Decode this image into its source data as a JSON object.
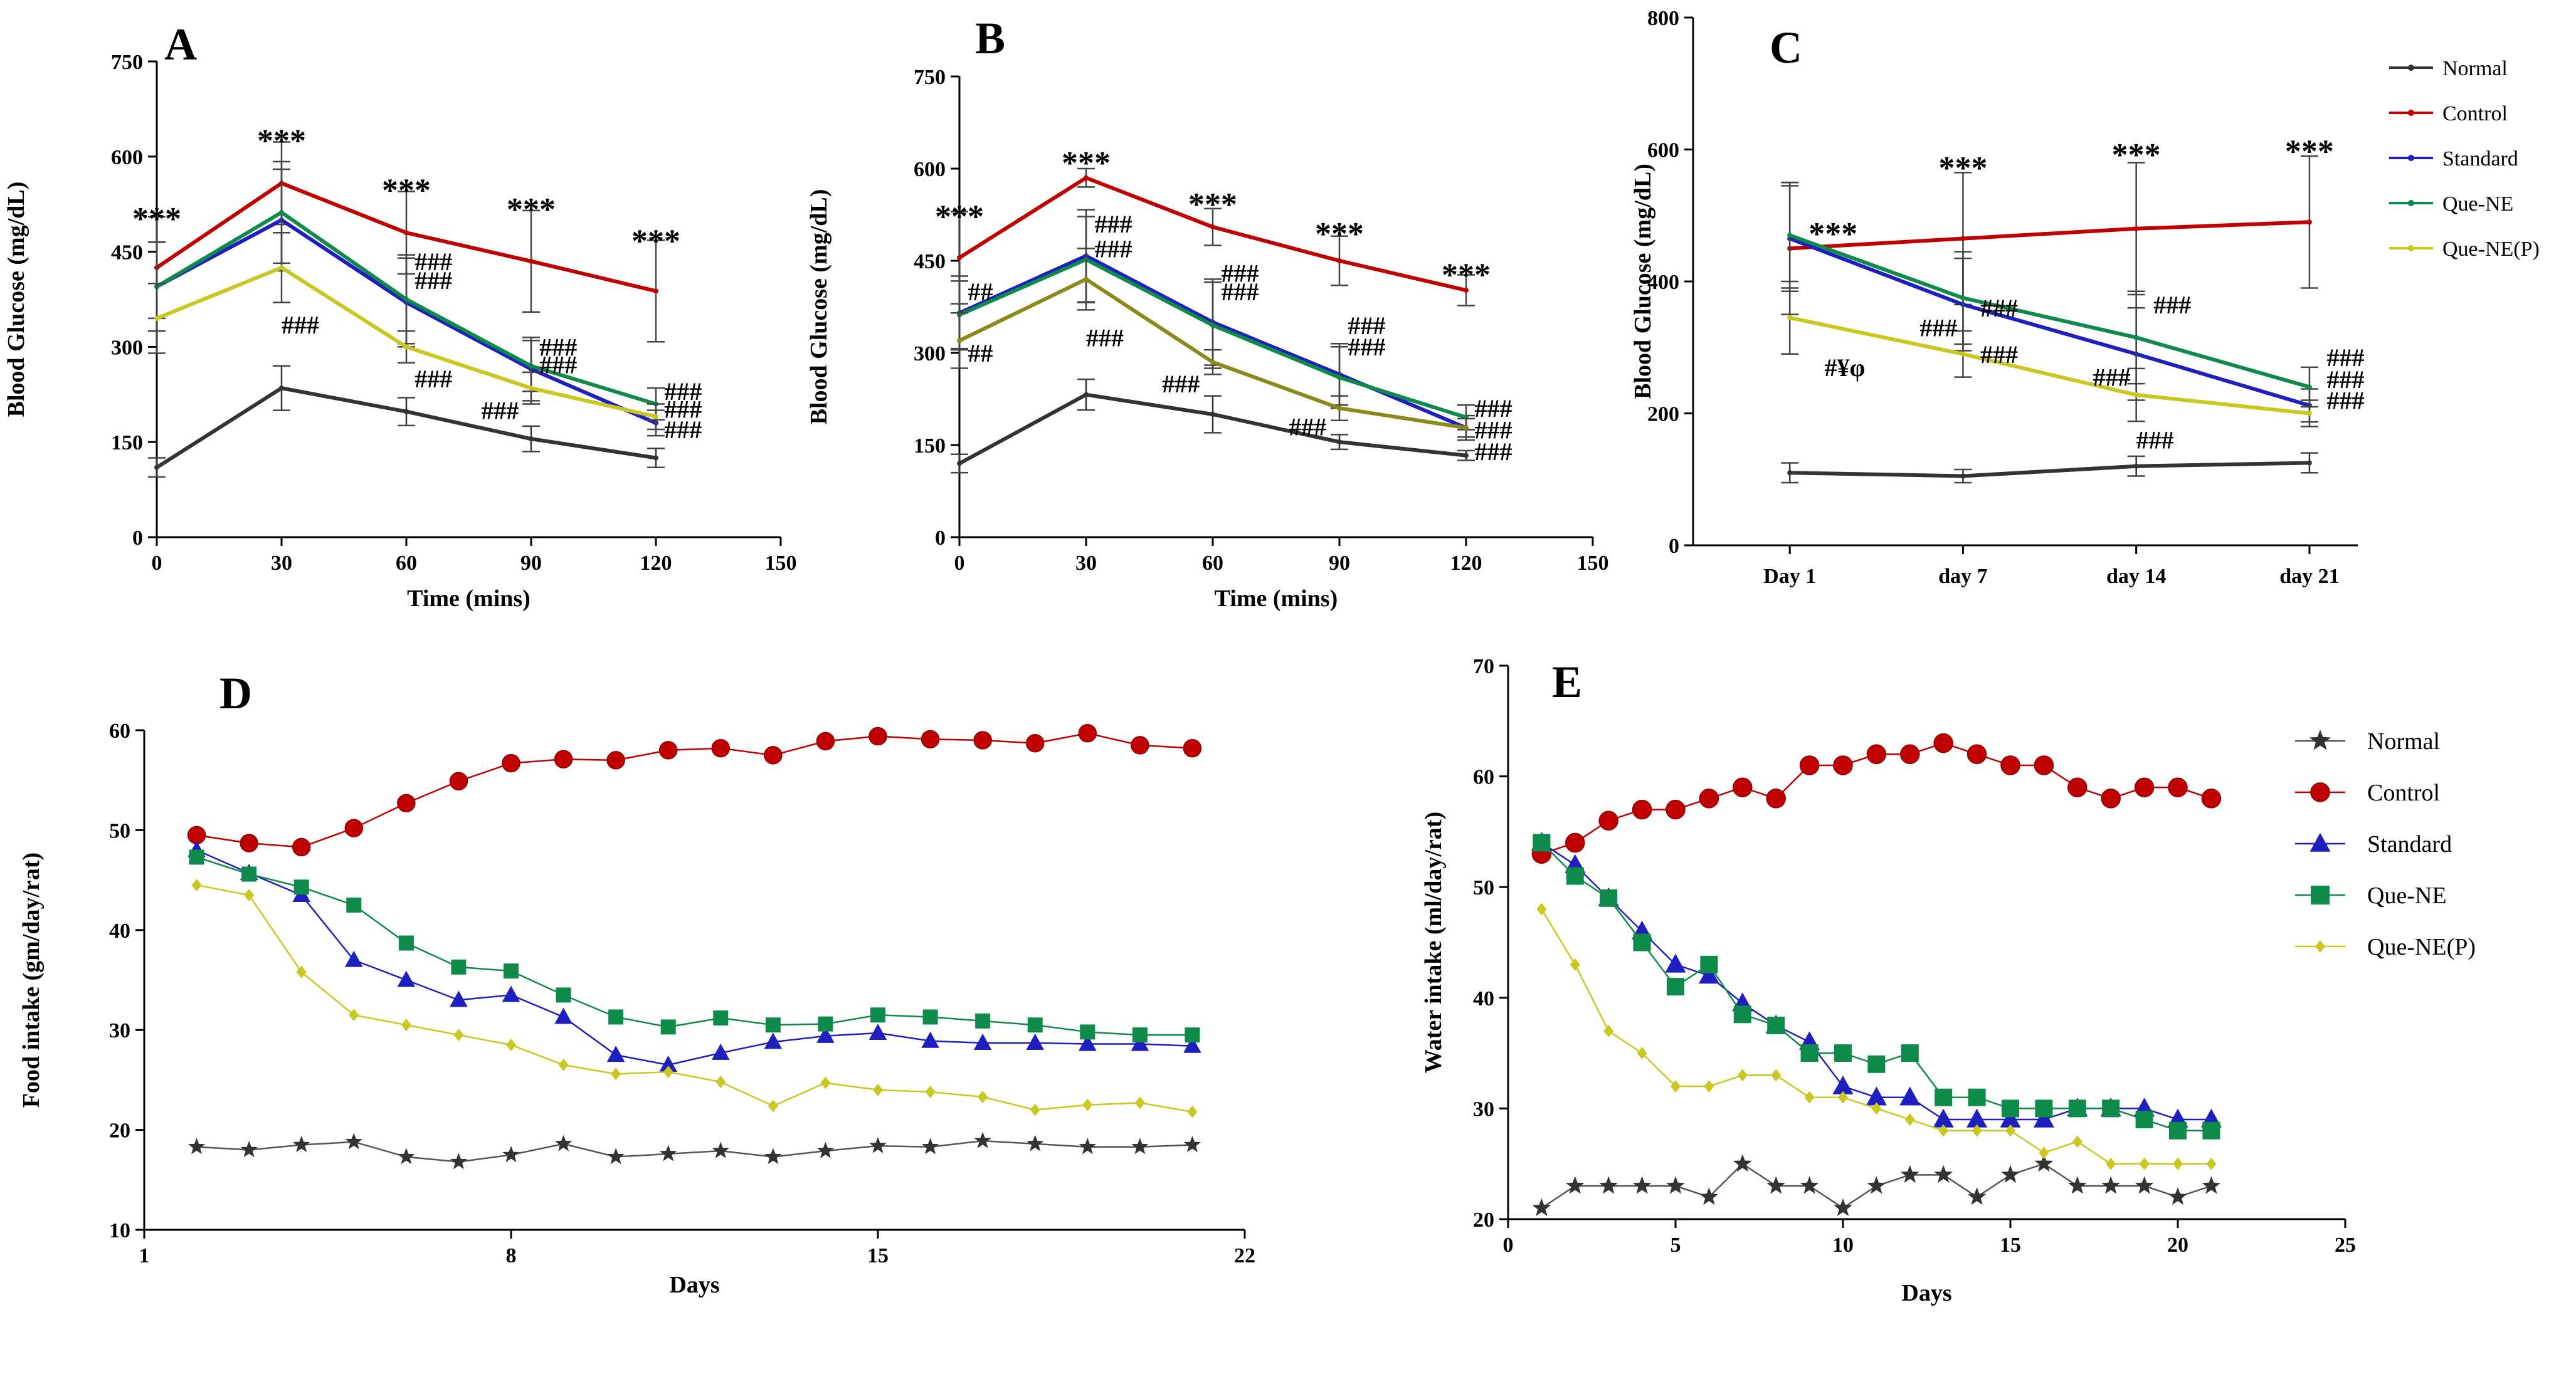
{
  "colors": {
    "Normal": "#333333",
    "Control": "#c00000",
    "Standard": "#1f1fbf",
    "Que-NE": "#0e8a4a",
    "Que-NE(P)": "#c8c820",
    "Que-NE(P)-B": "#8a8a1a",
    "axis": "#000000"
  },
  "chart_data": [
    {
      "id": "A",
      "type": "line",
      "title": "A",
      "xlabel": "Time (mins)",
      "ylabel": "Blood Glucose (mg/dL)",
      "xlim": [
        0,
        150
      ],
      "ylim": [
        0,
        750
      ],
      "xticks": [
        "0",
        "30",
        "60",
        "90",
        "120",
        "150"
      ],
      "yticks": [
        "0",
        "150",
        "300",
        "450",
        "600",
        "750"
      ],
      "x": [
        0,
        30,
        60,
        90,
        120
      ],
      "series": [
        {
          "name": "Normal",
          "values": [
            110,
            235,
            198,
            155,
            125
          ],
          "err": [
            15,
            35,
            22,
            20,
            15
          ]
        },
        {
          "name": "Control",
          "values": [
            425,
            558,
            480,
            435,
            388
          ],
          "err": [
            80,
            65,
            65,
            80,
            80
          ]
        },
        {
          "name": "Standard",
          "values": [
            395,
            500,
            370,
            265,
            180
          ],
          "err": [
            70,
            80,
            70,
            50,
            20
          ]
        },
        {
          "name": "Que-NE",
          "values": [
            395,
            512,
            375,
            270,
            210
          ],
          "err": [
            70,
            80,
            70,
            40,
            25
          ]
        },
        {
          "name": "Que-NE(P)",
          "values": [
            345,
            425,
            300,
            235,
            190
          ],
          "err": [
            55,
            55,
            25,
            25,
            20
          ]
        }
      ],
      "annotations": [
        {
          "text": "***",
          "x": 0,
          "y": 505
        },
        {
          "text": "***",
          "x": 30,
          "y": 628
        },
        {
          "text": "***",
          "x": 60,
          "y": 550
        },
        {
          "text": "***",
          "x": 90,
          "y": 520
        },
        {
          "text": "***",
          "x": 120,
          "y": 470
        },
        {
          "text": "###",
          "x": 30,
          "y": 335
        },
        {
          "text": "###",
          "x": 62,
          "y": 435
        },
        {
          "text": "###",
          "x": 62,
          "y": 405
        },
        {
          "text": "###",
          "x": 62,
          "y": 250
        },
        {
          "text": "###",
          "x": 92,
          "y": 300
        },
        {
          "text": "###",
          "x": 92,
          "y": 272
        },
        {
          "text": "###",
          "x": 78,
          "y": 200
        },
        {
          "text": "###",
          "x": 122,
          "y": 230
        },
        {
          "text": "###",
          "x": 122,
          "y": 202
        },
        {
          "text": "###",
          "x": 122,
          "y": 170
        }
      ]
    },
    {
      "id": "B",
      "type": "line",
      "title": "B",
      "xlabel": "Time (mins)",
      "ylabel": "Blood Glucose (mg/dL)",
      "xlim": [
        0,
        150
      ],
      "ylim": [
        0,
        750
      ],
      "xticks": [
        "0",
        "30",
        "60",
        "90",
        "120",
        "150"
      ],
      "yticks": [
        "0",
        "150",
        "300",
        "450",
        "600",
        "750"
      ],
      "x": [
        0,
        30,
        60,
        90,
        120
      ],
      "series": [
        {
          "name": "Normal",
          "values": [
            120,
            232,
            200,
            155,
            133
          ],
          "err": [
            15,
            25,
            30,
            12,
            8
          ]
        },
        {
          "name": "Control",
          "values": [
            455,
            585,
            505,
            450,
            402
          ],
          "err": [
            75,
            15,
            30,
            40,
            25
          ]
        },
        {
          "name": "Standard",
          "values": [
            365,
            458,
            350,
            265,
            178
          ],
          "err": [
            60,
            75,
            70,
            50,
            20
          ]
        },
        {
          "name": "Que-NE",
          "values": [
            362,
            452,
            345,
            260,
            195
          ],
          "err": [
            55,
            70,
            70,
            50,
            20
          ]
        },
        {
          "name": "Que-NE(P)-B",
          "values": [
            320,
            420,
            285,
            210,
            178
          ],
          "err": [
            45,
            50,
            20,
            20,
            15
          ]
        }
      ],
      "annotations": [
        {
          "text": "***",
          "x": 0,
          "y": 525
        },
        {
          "text": "***",
          "x": 30,
          "y": 612
        },
        {
          "text": "***",
          "x": 60,
          "y": 545
        },
        {
          "text": "***",
          "x": 90,
          "y": 497
        },
        {
          "text": "***",
          "x": 120,
          "y": 430
        },
        {
          "text": "##",
          "x": 2,
          "y": 400
        },
        {
          "text": "##",
          "x": 2,
          "y": 300
        },
        {
          "text": "###",
          "x": 32,
          "y": 510
        },
        {
          "text": "###",
          "x": 32,
          "y": 470
        },
        {
          "text": "###",
          "x": 30,
          "y": 325
        },
        {
          "text": "###",
          "x": 62,
          "y": 430
        },
        {
          "text": "###",
          "x": 62,
          "y": 400
        },
        {
          "text": "###",
          "x": 48,
          "y": 250
        },
        {
          "text": "###",
          "x": 92,
          "y": 345
        },
        {
          "text": "###",
          "x": 92,
          "y": 310
        },
        {
          "text": "###",
          "x": 78,
          "y": 180
        },
        {
          "text": "###",
          "x": 122,
          "y": 210
        },
        {
          "text": "###",
          "x": 122,
          "y": 175
        },
        {
          "text": "###",
          "x": 122,
          "y": 140
        }
      ]
    },
    {
      "id": "C",
      "type": "line",
      "title": "C",
      "xlabel": "",
      "ylabel": "Blood Glucose (mg/dL)",
      "ylim": [
        0,
        800
      ],
      "categories": [
        "Day 1",
        "day 7",
        "day 14",
        "day 21"
      ],
      "yticks": [
        "0",
        "200",
        "400",
        "600",
        "800"
      ],
      "series": [
        {
          "name": "Normal",
          "values": [
            110,
            105,
            120,
            125
          ],
          "err": [
            15,
            10,
            15,
            15
          ]
        },
        {
          "name": "Control",
          "values": [
            450,
            465,
            480,
            490
          ],
          "err": [
            100,
            100,
            100,
            100
          ]
        },
        {
          "name": "Standard",
          "values": [
            465,
            365,
            290,
            212
          ],
          "err": [
            80,
            70,
            70,
            25
          ]
        },
        {
          "name": "Que-NE",
          "values": [
            470,
            375,
            315,
            240
          ],
          "err": [
            80,
            70,
            70,
            30
          ]
        },
        {
          "name": "Que-NE(P)",
          "values": [
            345,
            290,
            228,
            200
          ],
          "err": [
            55,
            35,
            40,
            20
          ]
        }
      ],
      "legend": [
        "Normal",
        "Control",
        "Standard",
        "Que-NE",
        "Que-NE(P)"
      ],
      "annotations": [
        {
          "text": "***",
          "ix": 0.25,
          "y": 475
        },
        {
          "text": "***",
          "ix": 1.0,
          "y": 575
        },
        {
          "text": "***",
          "ix": 2.0,
          "y": 595
        },
        {
          "text": "***",
          "ix": 3.0,
          "y": 600
        },
        {
          "text": "###",
          "ix": 0.75,
          "y": 330
        },
        {
          "text": "###",
          "ix": 1.1,
          "y": 360
        },
        {
          "text": "###",
          "ix": 1.1,
          "y": 290
        },
        {
          "text": "###",
          "ix": 2.1,
          "y": 365
        },
        {
          "text": "###",
          "ix": 1.75,
          "y": 255
        },
        {
          "text": "###",
          "ix": 2.0,
          "y": 160
        },
        {
          "text": "###",
          "ix": 3.1,
          "y": 285
        },
        {
          "text": "###",
          "ix": 3.1,
          "y": 252
        },
        {
          "text": "###",
          "ix": 3.1,
          "y": 220
        },
        {
          "text": "#¥φ",
          "ix": 0.2,
          "y": 270
        }
      ]
    },
    {
      "id": "D",
      "type": "line",
      "title": "D",
      "xlabel": "Days",
      "ylabel": "Food intake  (gm/day/rat)",
      "xlim": [
        1,
        22
      ],
      "ylim": [
        10,
        60
      ],
      "xticks": [
        "1",
        "8",
        "15",
        "22"
      ],
      "yticks": [
        "10",
        "20",
        "30",
        "40",
        "50",
        "60"
      ],
      "x": [
        2,
        3,
        4,
        5,
        6,
        7,
        8,
        9,
        10,
        11,
        12,
        13,
        14,
        15,
        16,
        17,
        18,
        19,
        20,
        21
      ],
      "series": [
        {
          "name": "Normal",
          "marker": "star",
          "values": [
            18.3,
            18,
            18.5,
            18.8,
            17.3,
            16.8,
            17.5,
            18.6,
            17.3,
            17.6,
            17.9,
            17.3,
            17.9,
            18.4,
            18.3,
            18.9,
            18.6,
            18.3,
            18.3,
            18.5
          ]
        },
        {
          "name": "Control",
          "marker": "circle",
          "values": [
            49.5,
            48.7,
            48.3,
            50.2,
            52.7,
            54.9,
            56.7,
            57.1,
            57,
            58,
            58.2,
            57.5,
            58.9,
            59.4,
            59.1,
            59,
            58.7,
            59.7,
            58.5,
            58.2
          ]
        },
        {
          "name": "Standard",
          "marker": "triangle",
          "values": [
            48,
            45.7,
            43.5,
            37,
            35,
            33,
            33.5,
            31.3,
            27.5,
            26.5,
            27.7,
            28.8,
            29.4,
            29.7,
            28.9,
            28.7,
            28.7,
            28.6,
            28.6,
            28.4
          ]
        },
        {
          "name": "Que-NE",
          "marker": "square",
          "values": [
            47.3,
            45.6,
            44.3,
            42.5,
            38.7,
            36.3,
            35.9,
            33.5,
            31.3,
            30.3,
            31.2,
            30.5,
            30.6,
            31.5,
            31.3,
            30.9,
            30.5,
            29.8,
            29.5,
            29.5
          ]
        },
        {
          "name": "Que-NE(P)",
          "marker": "diamond",
          "values": [
            44.5,
            43.5,
            35.8,
            31.5,
            30.5,
            29.5,
            28.5,
            26.5,
            25.6,
            25.8,
            24.8,
            22.4,
            24.7,
            24,
            23.8,
            23.3,
            22,
            22.5,
            22.7,
            21.8
          ]
        }
      ]
    },
    {
      "id": "E",
      "type": "line",
      "title": "E",
      "xlabel": "Days",
      "ylabel": "Water intake (ml/day/rat)",
      "xlim": [
        0,
        25
      ],
      "ylim": [
        20,
        70
      ],
      "xticks": [
        "0",
        "5",
        "10",
        "15",
        "20",
        "25"
      ],
      "yticks": [
        "20",
        "30",
        "40",
        "50",
        "60",
        "70"
      ],
      "x": [
        1,
        2,
        3,
        4,
        5,
        6,
        7,
        8,
        9,
        10,
        11,
        12,
        13,
        14,
        15,
        16,
        17,
        18,
        19,
        20,
        21
      ],
      "series": [
        {
          "name": "Normal",
          "marker": "star",
          "values": [
            21,
            23,
            23,
            23,
            23,
            22,
            25,
            23,
            23,
            21,
            23,
            24,
            24,
            22,
            24,
            25,
            23,
            23,
            23,
            22,
            23
          ]
        },
        {
          "name": "Control",
          "marker": "circle",
          "values": [
            53,
            54,
            56,
            57,
            57,
            58,
            59,
            58,
            61,
            61,
            62,
            62,
            63,
            62,
            61,
            61,
            59,
            58,
            59,
            59,
            58
          ]
        },
        {
          "name": "Standard",
          "marker": "triangle",
          "values": [
            54,
            52,
            49,
            46,
            43,
            42,
            39.5,
            37.5,
            36,
            32,
            31,
            31,
            29,
            29,
            29,
            29,
            30,
            30,
            30,
            29,
            29
          ]
        },
        {
          "name": "Que-NE",
          "marker": "square",
          "values": [
            54,
            51,
            49,
            45,
            41,
            43,
            38.5,
            37.5,
            35,
            35,
            34,
            35,
            31,
            31,
            30,
            30,
            30,
            30,
            29,
            28,
            28
          ]
        },
        {
          "name": "Que-NE(P)",
          "marker": "diamond",
          "values": [
            48,
            43,
            37,
            35,
            32,
            32,
            33,
            33,
            31,
            31,
            30,
            29,
            28,
            28,
            28,
            26,
            27,
            25,
            25,
            25,
            25
          ]
        }
      ],
      "legend": [
        "Normal",
        "Control",
        "Standard",
        "Que-NE",
        "Que-NE(P)"
      ]
    }
  ]
}
